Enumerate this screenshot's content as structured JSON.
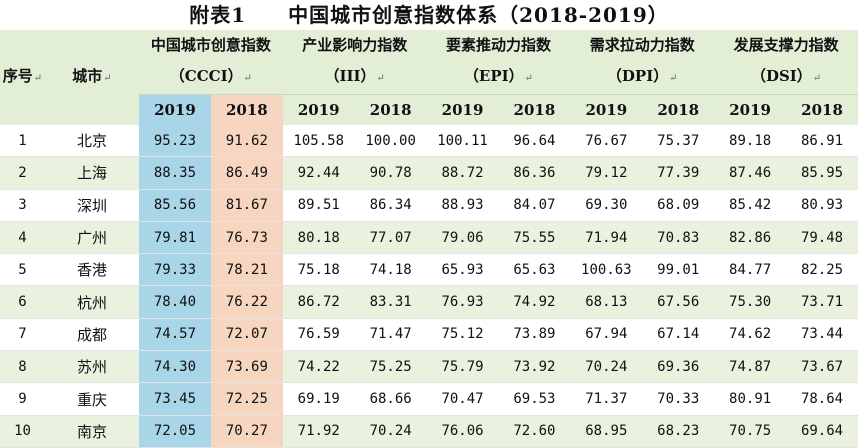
{
  "title": "附表1　　中国城市创意指数体系（2018-2019）",
  "headers": {
    "index": "序号",
    "city": "城市",
    "groups": [
      "中国城市创意指数（CCCI）",
      "产业影响力指数（III）",
      "要素推动力指数（EPI）",
      "需求拉动力指数（DPI）",
      "发展支撑力指数（DSI）"
    ],
    "years": [
      "2019",
      "2018"
    ]
  },
  "rows": [
    {
      "idx": "1",
      "city": "北京",
      "values": [
        "95.23",
        "91.62",
        "105.58",
        "100.00",
        "100.11",
        "96.64",
        "76.67",
        "75.37",
        "89.18",
        "86.91"
      ]
    },
    {
      "idx": "2",
      "city": "上海",
      "values": [
        "88.35",
        "86.49",
        "92.44",
        "90.78",
        "88.72",
        "86.36",
        "79.12",
        "77.39",
        "87.46",
        "85.95"
      ]
    },
    {
      "idx": "3",
      "city": "深圳",
      "values": [
        "85.56",
        "81.67",
        "89.51",
        "86.34",
        "88.93",
        "84.07",
        "69.30",
        "68.09",
        "85.42",
        "80.93"
      ]
    },
    {
      "idx": "4",
      "city": "广州",
      "values": [
        "79.81",
        "76.73",
        "80.18",
        "77.07",
        "79.06",
        "75.55",
        "71.94",
        "70.83",
        "82.86",
        "79.48"
      ]
    },
    {
      "idx": "5",
      "city": "香港",
      "values": [
        "79.33",
        "78.21",
        "75.18",
        "74.18",
        "65.93",
        "65.63",
        "100.63",
        "99.01",
        "84.77",
        "82.25"
      ]
    },
    {
      "idx": "6",
      "city": "杭州",
      "values": [
        "78.40",
        "76.22",
        "86.72",
        "83.31",
        "76.93",
        "74.92",
        "68.13",
        "67.56",
        "75.30",
        "73.71"
      ]
    },
    {
      "idx": "7",
      "city": "成都",
      "values": [
        "74.57",
        "72.07",
        "76.59",
        "71.47",
        "75.12",
        "73.89",
        "67.94",
        "67.14",
        "74.62",
        "73.44"
      ]
    },
    {
      "idx": "8",
      "city": "苏州",
      "values": [
        "74.30",
        "73.69",
        "74.22",
        "75.25",
        "75.79",
        "73.92",
        "70.24",
        "69.36",
        "74.87",
        "73.67"
      ]
    },
    {
      "idx": "9",
      "city": "重庆",
      "values": [
        "73.45",
        "72.25",
        "69.19",
        "68.66",
        "70.47",
        "69.53",
        "71.37",
        "70.33",
        "80.91",
        "78.64"
      ]
    },
    {
      "idx": "10",
      "city": "南京",
      "values": [
        "72.05",
        "70.27",
        "71.92",
        "70.24",
        "76.06",
        "72.60",
        "68.95",
        "68.23",
        "70.75",
        "69.64"
      ]
    }
  ],
  "colors": {
    "header_bg": "#e3eed6",
    "ccci_2019_bg": "#a9d5e8",
    "ccci_2018_bg": "#f6d5c1",
    "stripe_bg": "#eaf1df"
  }
}
